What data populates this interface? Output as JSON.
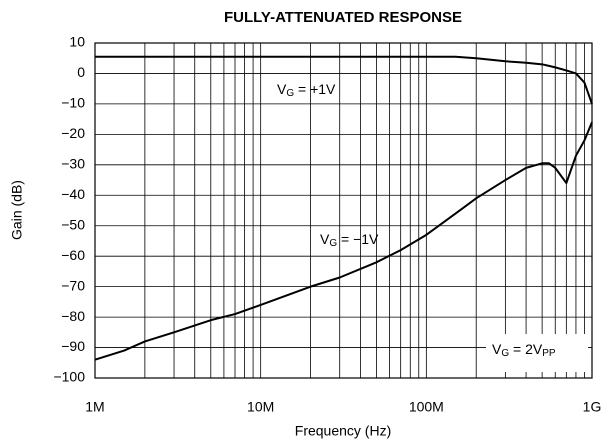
{
  "chart_data": {
    "type": "line",
    "title": "FULLY-ATTENUATED RESPONSE",
    "x_label": "Frequency (Hz)",
    "y_label": "Gain (dB)",
    "xscale": "log",
    "grid": true,
    "x": [
      1000000,
      1500000,
      2000000,
      3000000,
      5000000,
      7000000,
      10000000,
      20000000,
      30000000,
      50000000,
      70000000,
      100000000,
      150000000,
      200000000,
      300000000,
      400000000,
      500000000,
      550000000,
      600000000,
      700000000,
      800000000,
      900000000,
      1000000000
    ],
    "series": [
      {
        "color": "#000000",
        "values": [
          5.5,
          5.5,
          5.5,
          5.5,
          5.5,
          5.5,
          5.5,
          5.5,
          5.5,
          5.5,
          5.5,
          5.5,
          5.5,
          5,
          4,
          3.5,
          3,
          2.5,
          2,
          1,
          0,
          -3,
          -10
        ]
      },
      {
        "color": "#000000",
        "values": [
          -94,
          -91,
          -88,
          -85,
          -81,
          -79,
          -76,
          -70,
          -67,
          -62,
          -58,
          -53,
          -46,
          -41,
          -35,
          -31,
          -29.5,
          -29.5,
          -31,
          -36,
          -27,
          -22,
          -16
        ]
      }
    ],
    "xlim": [
      1000000,
      1000000000
    ],
    "ylim": [
      -100,
      10
    ],
    "xticks": [
      {
        "value": 1000000,
        "label": "1M"
      },
      {
        "value": 10000000,
        "label": "10M"
      },
      {
        "value": 100000000,
        "label": "100M"
      },
      {
        "value": 1000000000,
        "label": "1G"
      }
    ],
    "x_minor_ticks": [
      2000000,
      3000000,
      4000000,
      5000000,
      6000000,
      7000000,
      8000000,
      9000000,
      20000000,
      30000000,
      40000000,
      50000000,
      60000000,
      70000000,
      80000000,
      90000000,
      200000000,
      300000000,
      400000000,
      500000000,
      600000000,
      700000000,
      800000000,
      900000000
    ],
    "yticks": [
      {
        "value": -100,
        "label": "−100"
      },
      {
        "value": -90,
        "label": "−90"
      },
      {
        "value": -80,
        "label": "−80"
      },
      {
        "value": -70,
        "label": "−70"
      },
      {
        "value": -60,
        "label": "−60"
      },
      {
        "value": -50,
        "label": "−50"
      },
      {
        "value": -40,
        "label": "−40"
      },
      {
        "value": -30,
        "label": "−30"
      },
      {
        "value": -20,
        "label": "−20"
      },
      {
        "value": -10,
        "label": "−10"
      },
      0,
      10
    ],
    "annotations": [
      {
        "parts": [
          "V",
          "G",
          " = +1V"
        ]
      },
      {
        "parts": [
          "V",
          "G",
          " = −1V"
        ]
      },
      {
        "parts": [
          "V",
          "G",
          " = 2V",
          "PP"
        ]
      }
    ]
  }
}
